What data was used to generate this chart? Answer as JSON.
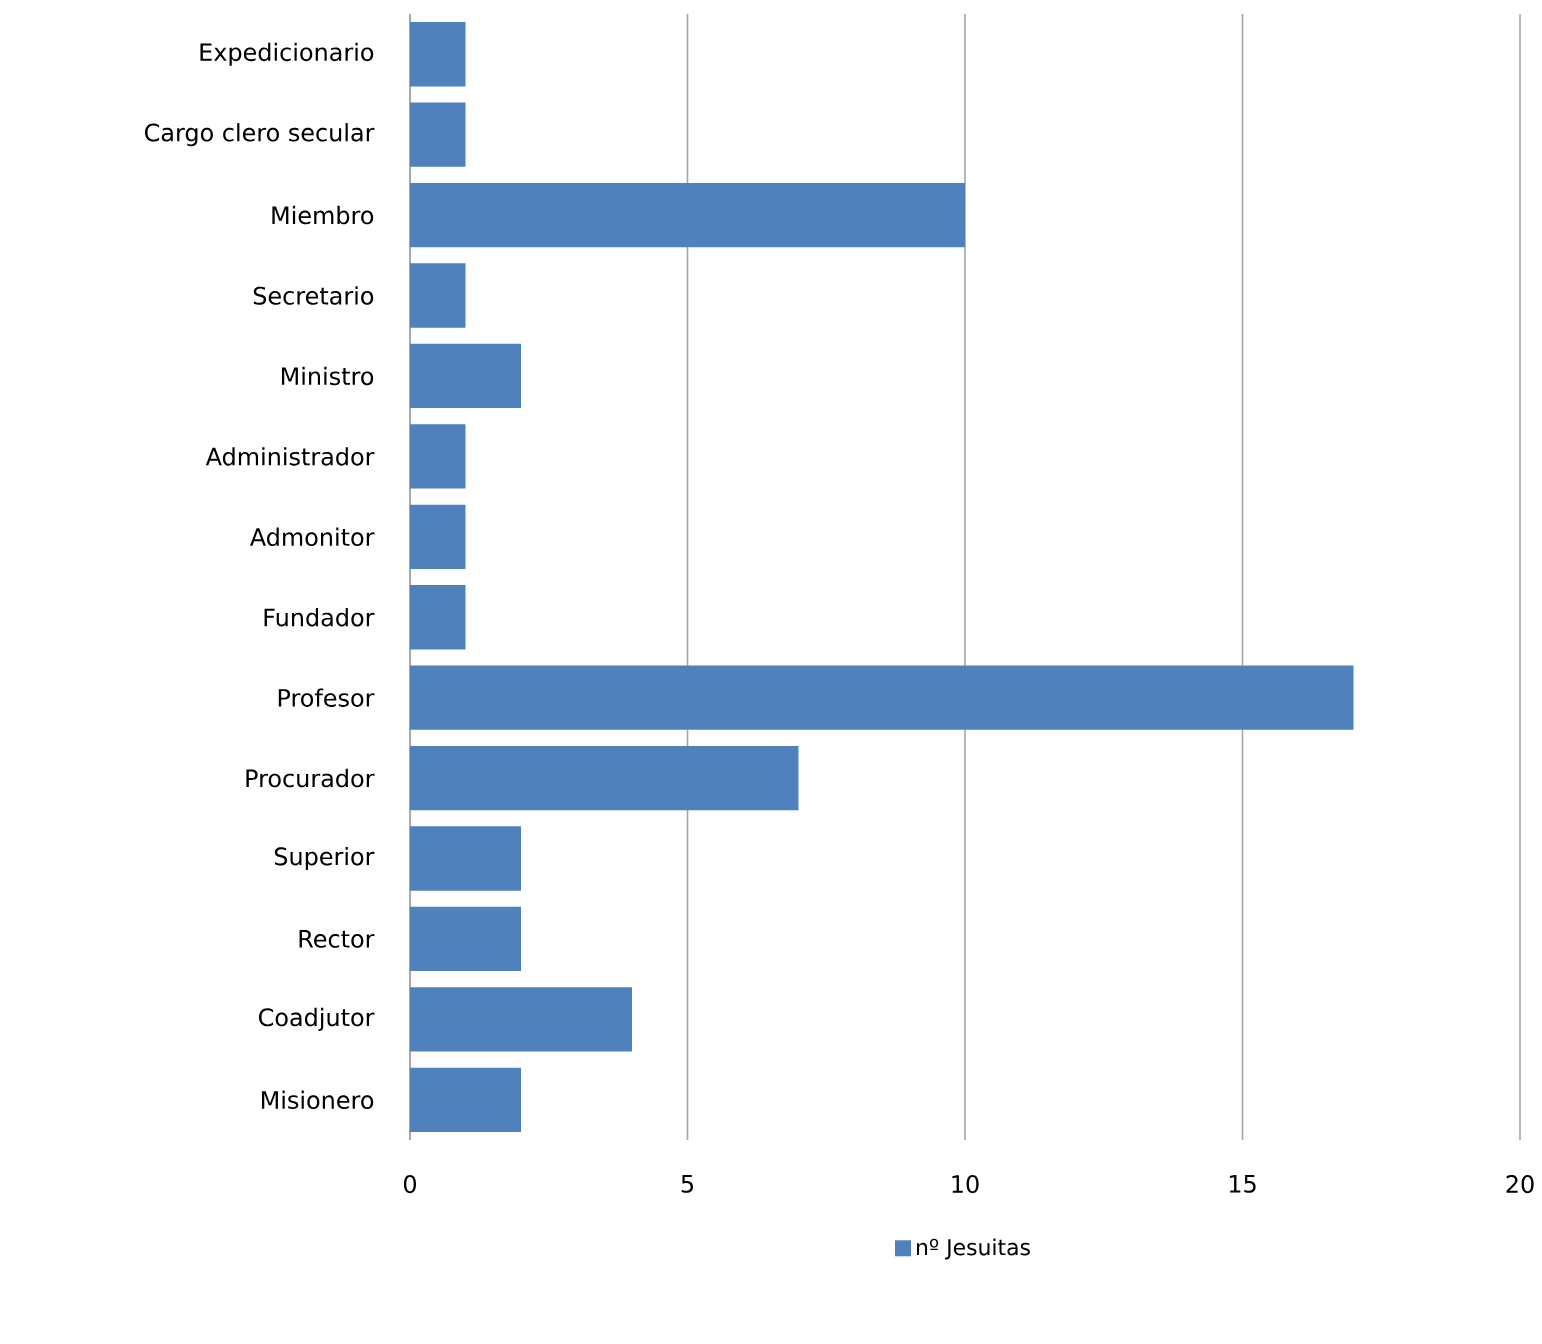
{
  "chart_data": {
    "type": "bar",
    "orientation": "horizontal",
    "categories": [
      "Expedicionario",
      "Cargo clero secular",
      "Miembro",
      "Secretario",
      "Ministro",
      "Administrador",
      "Admonitor",
      "Fundador",
      "Profesor",
      "Procurador",
      "Superior",
      "Rector",
      "Coadjutor",
      "Misionero"
    ],
    "series": [
      {
        "name": "nº Jesuitas",
        "color": "#4f81bd",
        "values": [
          1,
          1,
          10,
          1,
          2,
          1,
          1,
          1,
          17,
          7,
          2,
          2,
          4,
          2
        ]
      }
    ],
    "xlim": [
      0,
      20
    ],
    "xticks": [
      0,
      5,
      10,
      15,
      20
    ],
    "grid": "x",
    "legend": "bottom"
  }
}
